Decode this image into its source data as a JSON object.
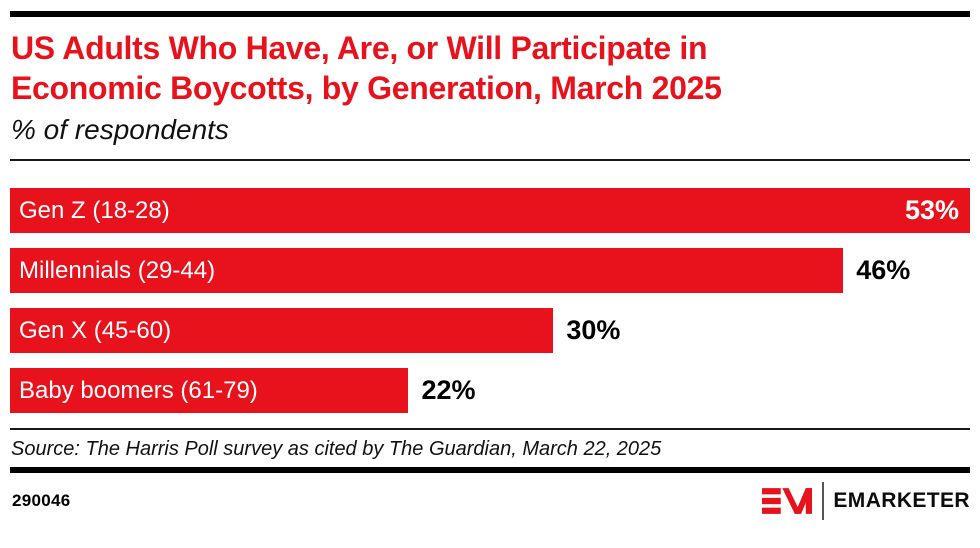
{
  "header": {
    "title_line1": "US Adults Who Have, Are, or Will Participate in",
    "title_line2": "Economic Boycotts, by Generation, March 2025",
    "subtitle": "% of respondents"
  },
  "chart_data": {
    "type": "bar",
    "orientation": "horizontal",
    "title": "US Adults Who Have, Are, or Will Participate in Economic Boycotts, by Generation, March 2025",
    "subtitle": "% of respondents",
    "categories": [
      "Gen Z (18-28)",
      "Millennials (29-44)",
      "Gen X (45-60)",
      "Baby boomers (61-79)"
    ],
    "values": [
      53,
      46,
      30,
      22
    ],
    "value_labels": [
      "53%",
      "46%",
      "30%",
      "22%"
    ],
    "xlim": [
      0,
      53
    ],
    "grid": false,
    "legend": false,
    "bar_color": "#e8121c",
    "category_label_position": "inside-left",
    "max_value_label_position": "inside-right",
    "other_value_label_position": "outside-right"
  },
  "source": "Source: The Harris Poll survey as cited by The Guardian, March 22, 2025",
  "footer": {
    "chart_id": "290046",
    "brand": "EMARKETER"
  },
  "colors": {
    "accent_red": "#e8121c",
    "text_black": "#000000",
    "bar_label_white": "#ffffff",
    "divider_gray": "#54565a"
  }
}
